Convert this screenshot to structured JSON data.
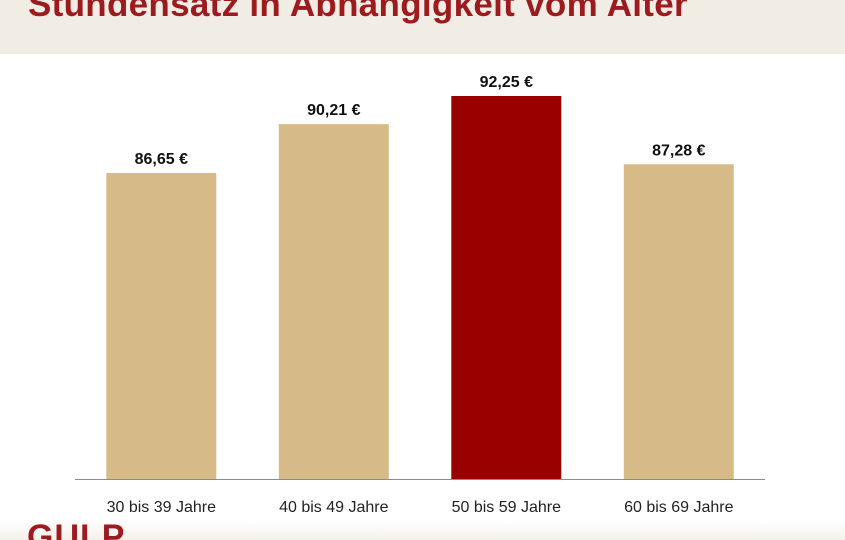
{
  "title": "Stundensatz in Abhängigkeit vom Alter",
  "logo": "GULP",
  "colors": {
    "title": "#9b1b1f",
    "bar_default": "#d6bb89",
    "bar_highlight": "#990000",
    "title_band": "#f1ede4",
    "axis": "#8c8c8c"
  },
  "chart_data": {
    "type": "bar",
    "title": "Stundensatz in Abhängigkeit vom Alter",
    "xlabel": "",
    "ylabel": "",
    "categories": [
      "30 bis 39 Jahre",
      "40 bis 49 Jahre",
      "50 bis 59 Jahre",
      "60 bis 69 Jahre"
    ],
    "values": [
      86.65,
      90.21,
      92.25,
      87.28
    ],
    "value_labels": [
      "86,65 €",
      "90,21 €",
      "92,25 €",
      "87,28 €"
    ],
    "highlight_index": 2,
    "ylim": [
      0,
      100
    ],
    "grid": false,
    "legend": "none"
  }
}
